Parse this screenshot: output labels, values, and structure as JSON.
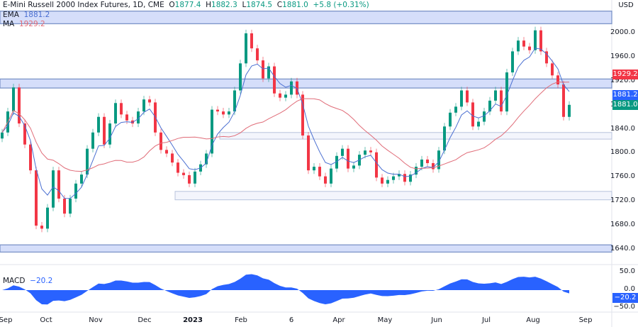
{
  "header": {
    "symbol": "E-Mini Russell 2000 Index Futures, 1D, CME",
    "o_label": "O",
    "o": "1877.4",
    "h_label": "H",
    "h": "1882.3",
    "l_label": "L",
    "l": "1874.5",
    "c_label": "C",
    "c": "1881.0",
    "change": "+5.8 (+0.31%)"
  },
  "legend": {
    "ema_label": "EMA",
    "ema_value": "1881.2",
    "ma_label": "MA",
    "ma_value": "1929.2",
    "macd_label": "MACD",
    "macd_value": "−20.2"
  },
  "currency": "USD",
  "price_tags": {
    "ma": "1929.2",
    "ema": "1881.2",
    "close": "1881.0",
    "macd": "−20.2"
  },
  "colors": {
    "up": "#089981",
    "down": "#f23645",
    "ema": "#4a6fd1",
    "ma": "#e06c78",
    "zone_fill": "#d5defa",
    "zone_border": "#7d95c8",
    "macd": "#2962ff"
  },
  "chart_data": {
    "type": "candlestick",
    "price_axis": {
      "ticks": [
        "2000.0",
        "1960.0",
        "1920.0",
        "1880.0",
        "1840.0",
        "1800.0",
        "1760.0",
        "1720.0",
        "1680.0",
        "1640.0"
      ],
      "ylim": [
        1620,
        2040
      ]
    },
    "macd_axis": {
      "ticks": [
        "50.0",
        "0.0",
        "−50.0"
      ]
    },
    "time_axis": [
      "Sep",
      "Oct",
      "Nov",
      "Dec",
      "2023",
      "Feb",
      "6",
      "Apr",
      "May",
      "Jun",
      "Jul",
      "Aug",
      "Sep"
    ],
    "close": [
      1835,
      1870,
      1910,
      1850,
      1815,
      1772,
      1680,
      1675,
      1710,
      1772,
      1725,
      1700,
      1725,
      1750,
      1765,
      1808,
      1835,
      1861,
      1815,
      1850,
      1884,
      1865,
      1855,
      1850,
      1870,
      1890,
      1885,
      1835,
      1806,
      1800,
      1785,
      1768,
      1764,
      1750,
      1770,
      1782,
      1800,
      1873,
      1870,
      1865,
      1870,
      1905,
      1950,
      2000,
      1975,
      1955,
      1925,
      1945,
      1900,
      1893,
      1898,
      1920,
      1898,
      1830,
      1772,
      1778,
      1762,
      1750,
      1775,
      1796,
      1808,
      1775,
      1780,
      1798,
      1805,
      1802,
      1760,
      1750,
      1756,
      1762,
      1766,
      1753,
      1765,
      1778,
      1790,
      1784,
      1774,
      1805,
      1845,
      1868,
      1878,
      1905,
      1885,
      1845,
      1853,
      1870,
      1888,
      1905,
      1870,
      1935,
      1970,
      1988,
      1978,
      1972,
      2005,
      1970,
      1950,
      1930,
      1915,
      1861,
      1881
    ],
    "zones": [
      {
        "top": 2037,
        "bottom": 2016
      },
      {
        "top": 1924,
        "bottom": 1909
      },
      {
        "top": 1648,
        "bottom": 1636
      },
      {
        "top": 1835,
        "bottom": 1824
      },
      {
        "top": 1737,
        "bottom": 1723
      }
    ]
  }
}
